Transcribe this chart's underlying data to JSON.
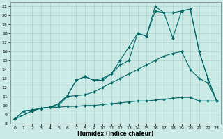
{
  "xlabel": "Humidex (Indice chaleur)",
  "background_color": "#cceae5",
  "grid_color": "#aad4cc",
  "line_color": "#006868",
  "line1_x": [
    0,
    1,
    2,
    3,
    4,
    5,
    6,
    7,
    8,
    9,
    10,
    11,
    12,
    13,
    14,
    15,
    16,
    17,
    18,
    19,
    20,
    21,
    22,
    23
  ],
  "line1_y": [
    8.5,
    9.4,
    9.5,
    9.7,
    9.8,
    9.8,
    9.9,
    9.9,
    10.0,
    10.0,
    10.1,
    10.2,
    10.3,
    10.4,
    10.5,
    10.5,
    10.6,
    10.7,
    10.8,
    10.9,
    10.9,
    10.5,
    10.5,
    10.5
  ],
  "line2_x": [
    0,
    1,
    2,
    3,
    4,
    5,
    6,
    7,
    8,
    9,
    10,
    11,
    12,
    13,
    14,
    15,
    16,
    17,
    18,
    19,
    20,
    21,
    22,
    23
  ],
  "line2_y": [
    8.5,
    9.4,
    9.5,
    9.7,
    9.8,
    10.0,
    11.0,
    11.1,
    11.2,
    11.5,
    12.0,
    12.5,
    13.0,
    13.5,
    14.0,
    14.5,
    15.0,
    15.5,
    15.8,
    16.0,
    14.0,
    13.0,
    12.5,
    10.5
  ],
  "line3_x": [
    0,
    2,
    3,
    4,
    5,
    6,
    7,
    8,
    9,
    10,
    11,
    12,
    13,
    14,
    15,
    16,
    17,
    18,
    19,
    20,
    21,
    22,
    23
  ],
  "line3_y": [
    8.5,
    9.4,
    9.7,
    9.8,
    10.2,
    11.1,
    12.8,
    13.2,
    12.8,
    13.0,
    13.5,
    15.0,
    16.5,
    18.0,
    17.7,
    20.5,
    20.3,
    20.3,
    20.5,
    20.7,
    16.0,
    13.0,
    10.5
  ],
  "line4_x": [
    0,
    2,
    3,
    4,
    5,
    6,
    7,
    8,
    9,
    10,
    11,
    12,
    13,
    14,
    15,
    16,
    17,
    18,
    19,
    20,
    21,
    22,
    23
  ],
  "line4_y": [
    8.5,
    9.4,
    9.7,
    9.8,
    10.2,
    11.1,
    12.8,
    13.2,
    12.8,
    12.8,
    13.5,
    14.5,
    15.0,
    18.0,
    17.7,
    21.0,
    20.3,
    17.5,
    20.5,
    20.7,
    16.0,
    13.0,
    10.5
  ],
  "xlim": [
    -0.5,
    23.5
  ],
  "ylim": [
    8.0,
    21.5
  ],
  "xticks": [
    0,
    1,
    2,
    3,
    4,
    5,
    6,
    7,
    8,
    9,
    10,
    11,
    12,
    13,
    14,
    15,
    16,
    17,
    18,
    19,
    20,
    21,
    22,
    23
  ],
  "yticks": [
    8,
    9,
    10,
    11,
    12,
    13,
    14,
    15,
    16,
    17,
    18,
    19,
    20,
    21
  ]
}
